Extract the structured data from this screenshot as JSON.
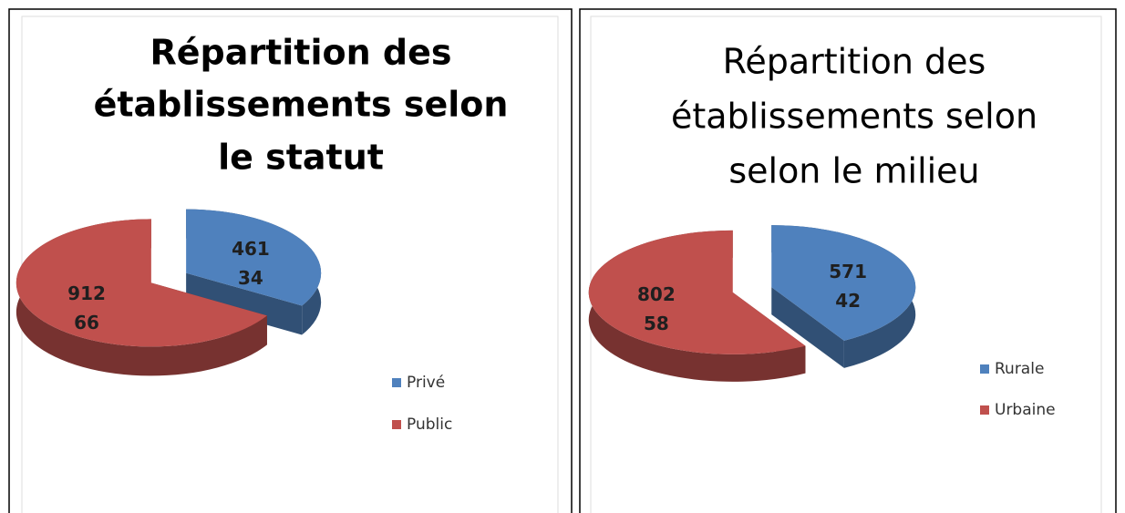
{
  "chart_data": [
    {
      "type": "pie",
      "title": [
        "Répartition  des",
        "établissements selon",
        "le statut"
      ],
      "categories": [
        "Privé",
        "Public"
      ],
      "values": [
        461,
        912
      ],
      "percents": [
        34,
        66
      ],
      "colors": [
        "#4f81bd",
        "#c0504d"
      ],
      "legend": "right",
      "title_bold": true
    },
    {
      "type": "pie",
      "title": [
        "Répartition  des",
        "établissements selon",
        "selon le milieu"
      ],
      "categories": [
        "Rurale",
        "Urbaine"
      ],
      "values": [
        571,
        802
      ],
      "percents": [
        42,
        58
      ],
      "colors": [
        "#4f81bd",
        "#c0504d"
      ],
      "legend": "right",
      "title_bold": false
    }
  ]
}
